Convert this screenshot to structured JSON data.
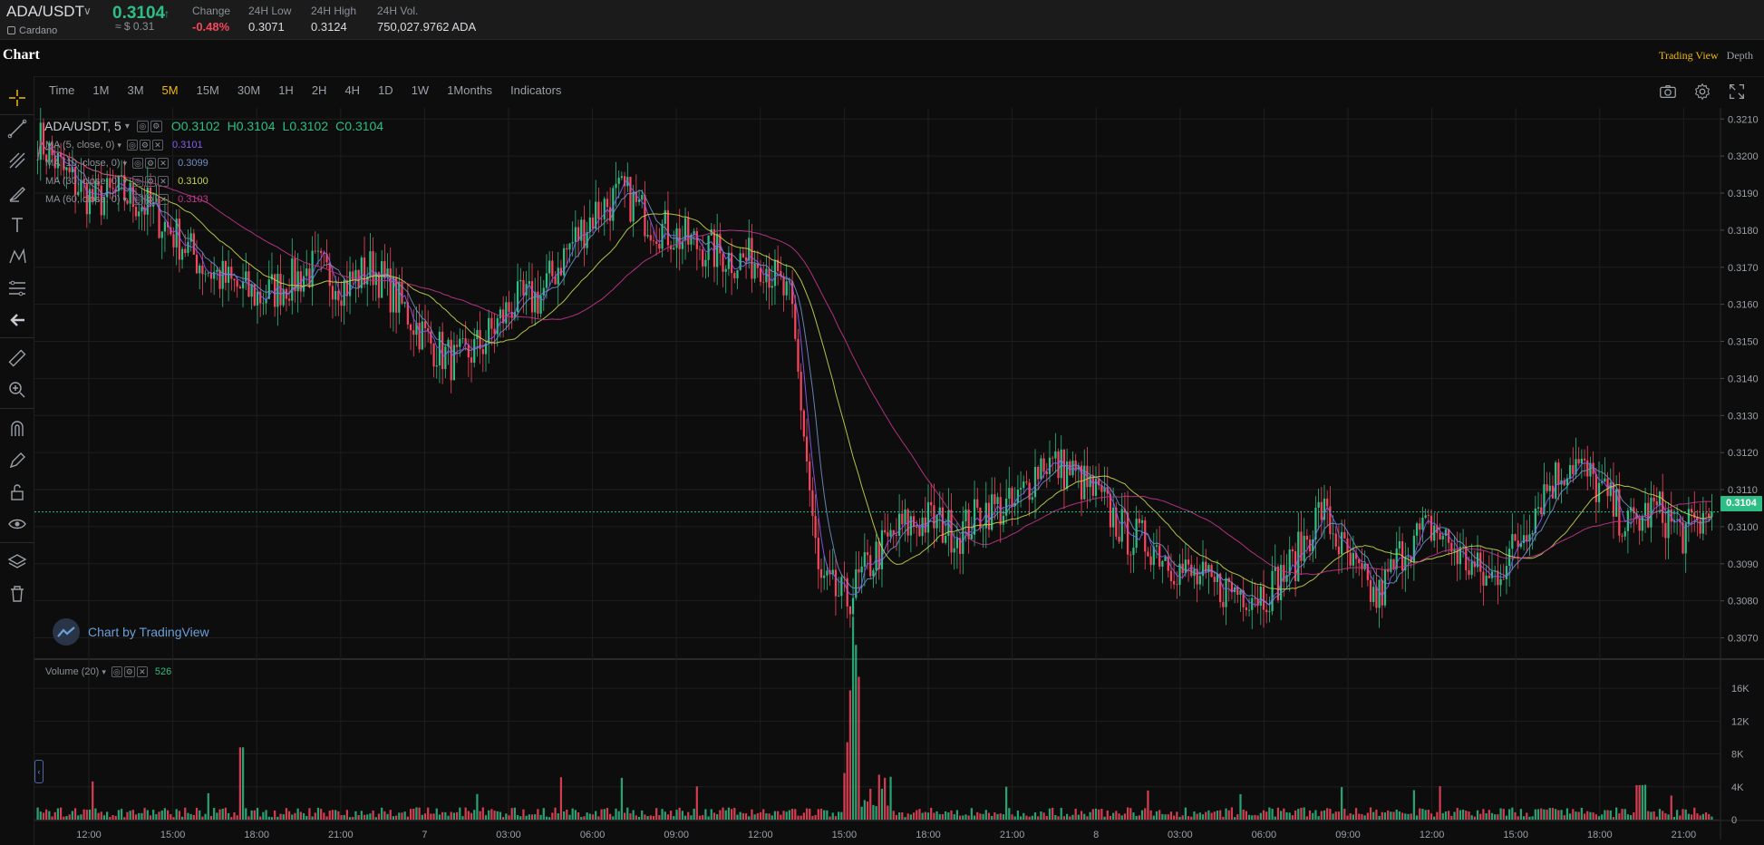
{
  "ticker": {
    "pair": "ADA/USDT",
    "coin_name": "Cardano",
    "last_price": "0.3104",
    "last_arrow": "↑",
    "usd_price": "≈ $ 0.31",
    "stats": [
      {
        "label": "Change",
        "value": "-0.48%"
      },
      {
        "label": "24H Low",
        "value": "0.3071"
      },
      {
        "label": "24H High",
        "value": "0.3124"
      },
      {
        "label": "24H Vol.",
        "value": "750,027.9762 ADA"
      }
    ]
  },
  "chart_title": "Chart",
  "view_tabs": {
    "trading": "Trading View",
    "depth": "Depth"
  },
  "intervals": [
    "Time",
    "1M",
    "3M",
    "5M",
    "15M",
    "30M",
    "1H",
    "2H",
    "4H",
    "1D",
    "1W",
    "1Months",
    "Indicators"
  ],
  "active_interval": "5M",
  "legend": {
    "symbol": "ADA/USDT, 5",
    "o_label": "O",
    "o": "0.3102",
    "h_label": "H",
    "h": "0.3104",
    "l_label": "L",
    "l": "0.3102",
    "c_label": "C",
    "c": "0.3104"
  },
  "ma": [
    {
      "label": "MA (5, close, 0)",
      "value": "0.3101",
      "color": "#8a5cf5"
    },
    {
      "label": "MA (10, close, 0)",
      "value": "0.3099",
      "color": "#6f8fc7"
    },
    {
      "label": "MA (30, close, 0)",
      "value": "0.3100",
      "color": "#c8d44a"
    },
    {
      "label": "MA (60, close, 0)",
      "value": "0.3103",
      "color": "#c2368c"
    }
  ],
  "volume_legend": {
    "label": "Volume (20)",
    "value": "526"
  },
  "watermark": "Chart by TradingView",
  "current_price_tag": "0.3104",
  "colors": {
    "up": "#2ebd85",
    "down": "#f6465d",
    "accent": "#f0b90b"
  },
  "chart_data": {
    "type": "candlestick",
    "timeframe": "5m",
    "x_ticks": [
      "12:00",
      "15:00",
      "18:00",
      "21:00",
      "7",
      "03:00",
      "06:00",
      "09:00",
      "12:00",
      "15:00",
      "18:00",
      "21:00",
      "8",
      "03:00",
      "06:00",
      "09:00",
      "12:00",
      "15:00",
      "18:00",
      "21:00"
    ],
    "price_ticks": [
      "0.3210",
      "0.3200",
      "0.3190",
      "0.3180",
      "0.3170",
      "0.3160",
      "0.3150",
      "0.3140",
      "0.3130",
      "0.3120",
      "0.3110",
      "0.3100",
      "0.3090",
      "0.3080",
      "0.3070"
    ],
    "price_ylim": [
      0.3065,
      0.3213
    ],
    "volume_ticks": [
      "16K",
      "12K",
      "8K",
      "4K",
      "0"
    ],
    "volume_ylim": [
      0,
      18000
    ],
    "close_path": [
      [
        "12:00",
        0.3205
      ],
      [
        "13:00",
        0.3195
      ],
      [
        "14:00",
        0.3188
      ],
      [
        "15:00",
        0.319
      ],
      [
        "16:00",
        0.3186
      ],
      [
        "17:00",
        0.3178
      ],
      [
        "18:00",
        0.317
      ],
      [
        "19:00",
        0.3165
      ],
      [
        "20:00",
        0.3162
      ],
      [
        "21:00",
        0.3166
      ],
      [
        "22:00",
        0.317
      ],
      [
        "23:00",
        0.3165
      ],
      [
        "00:00",
        0.317
      ],
      [
        "01:00",
        0.316
      ],
      [
        "02:00",
        0.315
      ],
      [
        "03:00",
        0.3144
      ],
      [
        "04:00",
        0.315
      ],
      [
        "05:00",
        0.316
      ],
      [
        "06:00",
        0.3162
      ],
      [
        "07:00",
        0.3175
      ],
      [
        "08:00",
        0.3185
      ],
      [
        "09:00",
        0.319
      ],
      [
        "10:00",
        0.3182
      ],
      [
        "11:00",
        0.3178
      ],
      [
        "12:00",
        0.3175
      ],
      [
        "13:00",
        0.3172
      ],
      [
        "14:00",
        0.3172
      ],
      [
        "14:40",
        0.316
      ],
      [
        "15:00",
        0.3085
      ],
      [
        "15:30",
        0.308
      ],
      [
        "16:00",
        0.3092
      ],
      [
        "17:00",
        0.31
      ],
      [
        "18:00",
        0.3102
      ],
      [
        "19:00",
        0.3098
      ],
      [
        "20:00",
        0.3105
      ],
      [
        "21:00",
        0.3105
      ],
      [
        "22:00",
        0.3118
      ],
      [
        "23:00",
        0.3115
      ],
      [
        "00:00",
        0.3108
      ],
      [
        "01:00",
        0.3098
      ],
      [
        "02:00",
        0.3095
      ],
      [
        "03:00",
        0.3088
      ],
      [
        "04:00",
        0.3084
      ],
      [
        "05:00",
        0.3083
      ],
      [
        "06:00",
        0.3082
      ],
      [
        "07:00",
        0.309
      ],
      [
        "08:00",
        0.3105
      ],
      [
        "09:00",
        0.309
      ],
      [
        "10:00",
        0.308
      ],
      [
        "11:00",
        0.3095
      ],
      [
        "12:00",
        0.31
      ],
      [
        "13:00",
        0.3092
      ],
      [
        "14:00",
        0.3085
      ],
      [
        "15:00",
        0.3095
      ],
      [
        "16:00",
        0.311
      ],
      [
        "17:00",
        0.3118
      ],
      [
        "18:00",
        0.311
      ],
      [
        "19:00",
        0.31
      ],
      [
        "20:00",
        0.3105
      ],
      [
        "21:00",
        0.3098
      ],
      [
        "21:45",
        0.3104
      ]
    ],
    "volume_spikes": [
      [
        "19:40 day1",
        8800
      ],
      [
        "15:00 day2",
        18000
      ],
      [
        "15:10 day2",
        10000
      ],
      [
        "03:00 day2",
        4000
      ],
      [
        "12:00 day1",
        2000
      ],
      [
        "21:40 day3",
        4200
      ]
    ]
  }
}
